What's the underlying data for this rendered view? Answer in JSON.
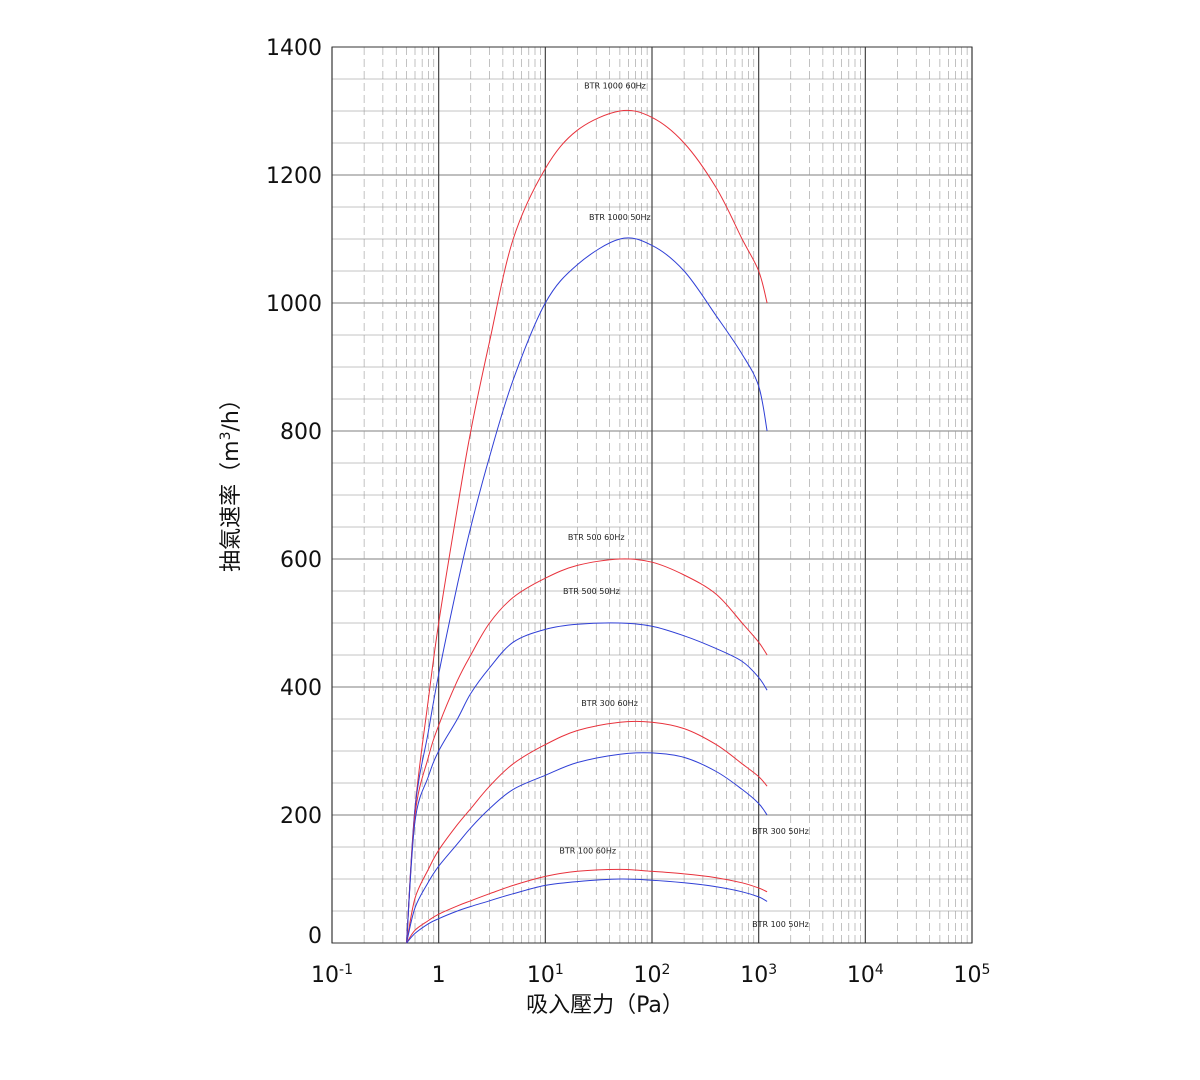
{
  "chart_data": {
    "type": "line",
    "title": "",
    "xlabel": "吸入壓力（Pa）",
    "ylabel": "抽氣速率（m",
    "ylabel_sup": "3",
    "ylabel_tail": "/h）",
    "x_scale": "log",
    "xlim": [
      0.1,
      100000
    ],
    "ylim": [
      0,
      1400
    ],
    "grid": true,
    "x_ticks": [
      {
        "value": 0.1,
        "base": "10",
        "sup": "-1"
      },
      {
        "value": 1,
        "base": "1",
        "sup": ""
      },
      {
        "value": 10,
        "base": "10",
        "sup": "1"
      },
      {
        "value": 100,
        "base": "10",
        "sup": "2"
      },
      {
        "value": 1000,
        "base": "10",
        "sup": "3"
      },
      {
        "value": 10000,
        "base": "10",
        "sup": "4"
      },
      {
        "value": 100000,
        "base": "10",
        "sup": "5"
      }
    ],
    "y_ticks": [
      "0",
      "200",
      "400",
      "600",
      "800",
      "1000",
      "1200",
      "1400"
    ],
    "colors": {
      "60Hz": "#e8323c",
      "50Hz": "#2f3fd6"
    },
    "series": [
      {
        "name": "BTR 1000   60Hz",
        "color": "#e8323c",
        "x": [
          0.5,
          0.6,
          0.8,
          1,
          1.5,
          2,
          3,
          5,
          10,
          20,
          50,
          100,
          200,
          400,
          700,
          1000,
          1200
        ],
        "y": [
          0,
          210,
          380,
          500,
          680,
          800,
          940,
          1100,
          1210,
          1270,
          1300,
          1290,
          1250,
          1180,
          1100,
          1050,
          1000
        ]
      },
      {
        "name": "BTR 1000   50Hz",
        "color": "#2f3fd6",
        "x": [
          0.5,
          0.6,
          0.8,
          1,
          1.5,
          2,
          3,
          5,
          10,
          20,
          50,
          100,
          200,
          400,
          700,
          1000,
          1200
        ],
        "y": [
          0,
          210,
          330,
          420,
          560,
          650,
          760,
          880,
          1000,
          1060,
          1100,
          1090,
          1050,
          980,
          920,
          870,
          800
        ]
      },
      {
        "name": "BTR 500   60Hz",
        "color": "#e8323c",
        "x": [
          0.5,
          0.6,
          0.8,
          1,
          1.5,
          2,
          3,
          5,
          10,
          20,
          50,
          100,
          200,
          400,
          700,
          1000,
          1200
        ],
        "y": [
          0,
          200,
          290,
          340,
          410,
          450,
          500,
          540,
          570,
          590,
          600,
          595,
          575,
          545,
          500,
          470,
          450
        ]
      },
      {
        "name": "BTR 500   50Hz",
        "color": "#2f3fd6",
        "x": [
          0.5,
          0.6,
          0.8,
          1,
          1.5,
          2,
          3,
          5,
          10,
          20,
          50,
          100,
          200,
          400,
          700,
          1000,
          1200
        ],
        "y": [
          0,
          190,
          260,
          300,
          350,
          390,
          430,
          470,
          490,
          498,
          500,
          495,
          480,
          460,
          440,
          415,
          395
        ]
      },
      {
        "name": "BTR 300   60Hz",
        "color": "#e8323c",
        "x": [
          0.5,
          0.6,
          0.8,
          1,
          1.5,
          2,
          3,
          5,
          10,
          20,
          50,
          100,
          200,
          400,
          700,
          1000,
          1200
        ],
        "y": [
          0,
          70,
          115,
          145,
          185,
          210,
          245,
          280,
          310,
          332,
          345,
          345,
          335,
          310,
          280,
          260,
          245
        ]
      },
      {
        "name": "BTR 300   50Hz",
        "color": "#2f3fd6",
        "x": [
          0.5,
          0.6,
          0.8,
          1,
          1.5,
          2,
          3,
          5,
          10,
          20,
          50,
          100,
          200,
          400,
          700,
          1000,
          1200
        ],
        "y": [
          0,
          55,
          95,
          120,
          155,
          180,
          210,
          240,
          262,
          282,
          295,
          297,
          290,
          268,
          240,
          218,
          200
        ]
      },
      {
        "name": "BTR 100   60Hz",
        "color": "#e8323c",
        "x": [
          0.5,
          0.6,
          0.8,
          1,
          1.5,
          2,
          3,
          5,
          10,
          20,
          50,
          100,
          200,
          400,
          700,
          1000,
          1200
        ],
        "y": [
          0,
          20,
          35,
          45,
          58,
          66,
          77,
          90,
          104,
          112,
          115,
          112,
          108,
          102,
          94,
          86,
          80
        ]
      },
      {
        "name": "BTR 100   50Hz",
        "color": "#2f3fd6",
        "x": [
          0.5,
          0.6,
          0.8,
          1,
          1.5,
          2,
          3,
          5,
          10,
          20,
          50,
          100,
          200,
          400,
          700,
          1000,
          1200
        ],
        "y": [
          0,
          15,
          30,
          38,
          50,
          57,
          66,
          77,
          90,
          96,
          100,
          98,
          94,
          88,
          80,
          72,
          65
        ]
      }
    ],
    "annotations": [
      {
        "series": "BTR 1000   60Hz",
        "text": "BTR 1000   60Hz",
        "x": 45,
        "y": 1335
      },
      {
        "series": "BTR 1000   50Hz",
        "text": "BTR 1000   50Hz",
        "x": 50,
        "y": 1130
      },
      {
        "series": "BTR 500   60Hz",
        "text": "BTR 500   60Hz",
        "x": 30,
        "y": 630
      },
      {
        "series": "BTR 500   50Hz",
        "text": "BTR 500   50Hz",
        "x": 27,
        "y": 545
      },
      {
        "series": "BTR 300   60Hz",
        "text": "BTR 300   60Hz",
        "x": 40,
        "y": 370
      },
      {
        "series": "BTR 300   50Hz",
        "text": "BTR 300   50Hz",
        "x": 1600,
        "y": 170
      },
      {
        "series": "BTR 100   60Hz",
        "text": "BTR 100   60Hz",
        "x": 25,
        "y": 140
      },
      {
        "series": "BTR 100   50Hz",
        "text": "BTR 100   50Hz",
        "x": 1600,
        "y": 25
      }
    ]
  }
}
